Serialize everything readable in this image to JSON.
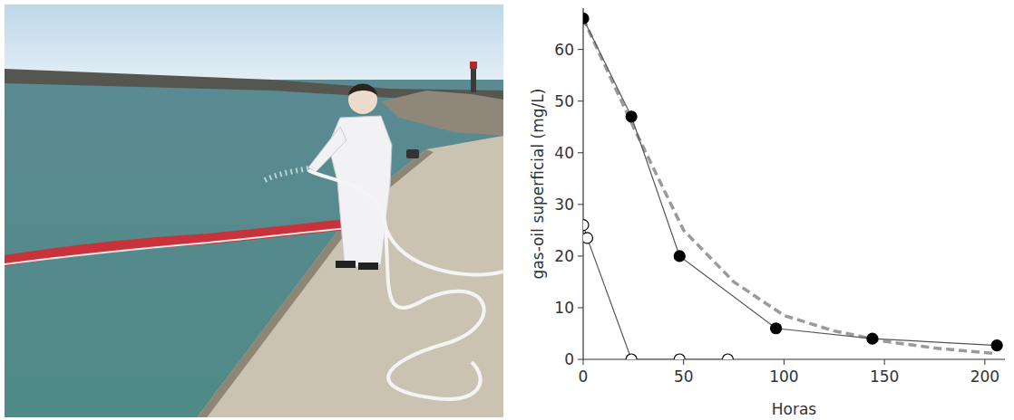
{
  "chart_data": {
    "type": "line",
    "x_label": "Horas",
    "y_label": "gas-oil superficial (mg/L)",
    "xlim": [
      0,
      210
    ],
    "ylim": [
      0,
      68
    ],
    "xticks": [
      0,
      50,
      100,
      150,
      200
    ],
    "yticks": [
      0,
      10,
      20,
      30,
      40,
      50,
      60
    ],
    "grid": false,
    "series": [
      {
        "color": "#000000",
        "marker": "filled",
        "line_style": "solid",
        "x": [
          0,
          24,
          48,
          96,
          144,
          206
        ],
        "values": [
          66,
          47,
          20,
          6,
          4,
          2.7
        ]
      },
      {
        "color": "#000000",
        "marker": "open",
        "line_style": "solid",
        "x": [
          0,
          2,
          24,
          48,
          72
        ],
        "values": [
          26,
          23.5,
          0,
          0,
          0
        ]
      },
      {
        "color": "#9a9a9a",
        "marker": "none",
        "line_style": "dashed",
        "x": [
          0,
          25,
          50,
          75,
          100,
          125,
          150,
          175,
          200,
          206
        ],
        "values": [
          66,
          45,
          25,
          15,
          8.5,
          5.5,
          3.5,
          2.2,
          1.3,
          1.1
        ]
      }
    ]
  }
}
